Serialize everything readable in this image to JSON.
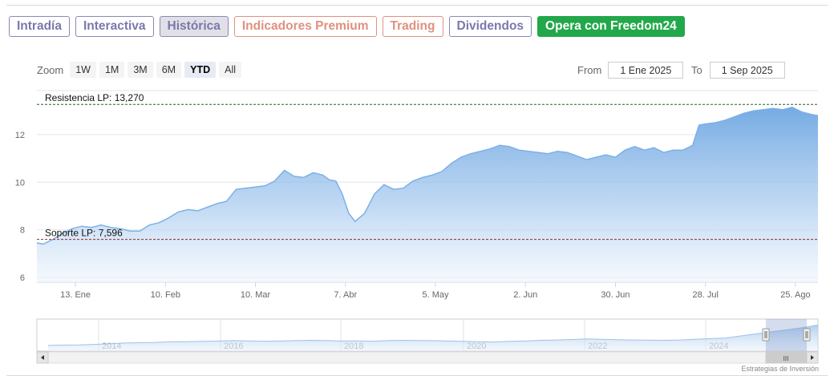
{
  "tabs": [
    {
      "label": "Intradía",
      "state": "normal"
    },
    {
      "label": "Interactiva",
      "state": "normal"
    },
    {
      "label": "Histórica",
      "state": "active"
    },
    {
      "label": "Indicadores Premium",
      "state": "premium"
    },
    {
      "label": "Trading",
      "state": "premium"
    },
    {
      "label": "Dividendos",
      "state": "normal"
    },
    {
      "label": "Opera con Freedom24",
      "state": "cta"
    }
  ],
  "zoom": {
    "label": "Zoom",
    "buttons": [
      "1W",
      "1M",
      "3M",
      "6M",
      "YTD",
      "All"
    ],
    "selected": "YTD"
  },
  "range": {
    "from_label": "From",
    "from_value": "1 Ene 2025",
    "to_label": "To",
    "to_value": "1 Sep 2025"
  },
  "chart_data": {
    "type": "area",
    "y_ticks": [
      "6",
      "8",
      "10",
      "12"
    ],
    "ylim": [
      5.8,
      13.85
    ],
    "x_ticks": [
      "13. Ene",
      "10. Feb",
      "10. Mar",
      "7. Abr",
      "5. May",
      "2. Jun",
      "30. Jun",
      "28. Jul",
      "25. Ago"
    ],
    "x_start": "2025-01-01",
    "x_end": "2025-09-01",
    "annotations": [
      {
        "label": "Resistencia LP: 13,270",
        "value": 13.27,
        "color": "#2c5e2c"
      },
      {
        "label": "Soporte LP: 7,596",
        "value": 7.596,
        "color": "#8a2a2a"
      }
    ],
    "series": [
      {
        "x": [
          "2025-01-01",
          "2025-01-03",
          "2025-01-06",
          "2025-01-09",
          "2025-01-12",
          "2025-01-15",
          "2025-01-18",
          "2025-01-21",
          "2025-01-24",
          "2025-01-27",
          "2025-01-30",
          "2025-02-02",
          "2025-02-05",
          "2025-02-08",
          "2025-02-11",
          "2025-02-14",
          "2025-02-17",
          "2025-02-20",
          "2025-02-23",
          "2025-02-26",
          "2025-03-01",
          "2025-03-04",
          "2025-03-07",
          "2025-03-10",
          "2025-03-13",
          "2025-03-16",
          "2025-03-19",
          "2025-03-22",
          "2025-03-25",
          "2025-03-28",
          "2025-03-31",
          "2025-04-02",
          "2025-04-04",
          "2025-04-06",
          "2025-04-08",
          "2025-04-10",
          "2025-04-13",
          "2025-04-16",
          "2025-04-19",
          "2025-04-22",
          "2025-04-25",
          "2025-04-28",
          "2025-05-01",
          "2025-05-04",
          "2025-05-07",
          "2025-05-10",
          "2025-05-13",
          "2025-05-16",
          "2025-05-19",
          "2025-05-22",
          "2025-05-25",
          "2025-05-28",
          "2025-05-31",
          "2025-06-03",
          "2025-06-06",
          "2025-06-09",
          "2025-06-12",
          "2025-06-15",
          "2025-06-18",
          "2025-06-21",
          "2025-06-24",
          "2025-06-27",
          "2025-06-30",
          "2025-07-03",
          "2025-07-06",
          "2025-07-09",
          "2025-07-12",
          "2025-07-15",
          "2025-07-18",
          "2025-07-21",
          "2025-07-24",
          "2025-07-26",
          "2025-07-28",
          "2025-07-31",
          "2025-08-03",
          "2025-08-06",
          "2025-08-09",
          "2025-08-12",
          "2025-08-15",
          "2025-08-18",
          "2025-08-21",
          "2025-08-24",
          "2025-08-27",
          "2025-08-30",
          "2025-09-01"
        ],
        "values": [
          7.45,
          7.4,
          7.6,
          7.85,
          8.05,
          8.15,
          8.1,
          8.2,
          8.1,
          8.05,
          7.95,
          7.95,
          8.2,
          8.3,
          8.5,
          8.75,
          8.85,
          8.8,
          8.95,
          9.1,
          9.2,
          9.7,
          9.75,
          9.8,
          9.85,
          10.05,
          10.5,
          10.25,
          10.2,
          10.4,
          10.3,
          10.1,
          10.05,
          9.5,
          8.7,
          8.35,
          8.7,
          9.5,
          9.9,
          9.7,
          9.75,
          10.05,
          10.2,
          10.3,
          10.45,
          10.8,
          11.05,
          11.2,
          11.3,
          11.4,
          11.55,
          11.5,
          11.35,
          11.3,
          11.25,
          11.2,
          11.3,
          11.25,
          11.1,
          10.95,
          11.05,
          11.15,
          11.05,
          11.35,
          11.5,
          11.35,
          11.45,
          11.25,
          11.35,
          11.35,
          11.55,
          12.4,
          12.45,
          12.5,
          12.6,
          12.75,
          12.9,
          13.0,
          13.05,
          13.1,
          13.05,
          13.15,
          12.95,
          12.85,
          12.8
        ]
      }
    ]
  },
  "navigator": {
    "year_labels": [
      "2014",
      "2016",
      "2018",
      "2020",
      "2022",
      "2024"
    ],
    "values": [
      1.2,
      1.3,
      1.35,
      1.5,
      1.7,
      1.9,
      2.0,
      2.1,
      2.3,
      2.3,
      2.4,
      2.5,
      2.6,
      2.55,
      2.45,
      2.5,
      2.6,
      2.7,
      2.65,
      2.5,
      2.55,
      2.45,
      2.6,
      2.7,
      2.65,
      2.6,
      2.5,
      2.4,
      2.3,
      2.2,
      2.4,
      2.5,
      2.7,
      2.8,
      2.95,
      3.1,
      3.0,
      2.9,
      2.8,
      2.75,
      2.7,
      2.8,
      3.0,
      3.2,
      3.4,
      4.0,
      4.6,
      5.2,
      5.8,
      6.4,
      7.2
    ]
  },
  "scrollbar_grip": "III",
  "credit": "Estrategias de Inversión"
}
